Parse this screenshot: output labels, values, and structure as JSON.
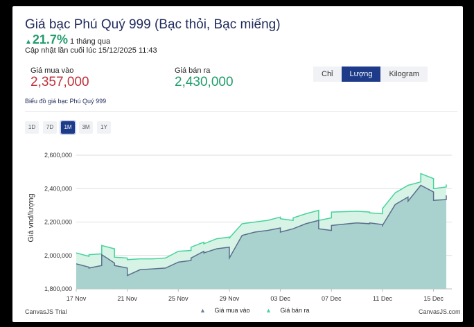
{
  "header": {
    "title": "Giá bạc Phú Quý 999 (Bạc thỏi, Bạc miếng)",
    "change_pct": "21.7%",
    "change_period": "1 tháng qua",
    "updated": "Cập nhật lần cuối lúc 15/12/2025 11:43"
  },
  "prices": {
    "buy_label": "Giá mua vào",
    "buy_value": "2,357,000",
    "sell_label": "Giá bán ra",
    "sell_value": "2,430,000"
  },
  "unit_tabs": [
    {
      "label": "Chỉ",
      "active": false
    },
    {
      "label": "Lượng",
      "active": true
    },
    {
      "label": "Kilogram",
      "active": false
    }
  ],
  "chart_caption": "Biểu đồ giá bạc Phú Quý 999",
  "range_buttons": [
    {
      "label": "1D",
      "active": false
    },
    {
      "label": "7D",
      "active": false
    },
    {
      "label": "1M",
      "active": true
    },
    {
      "label": "3M",
      "active": false
    },
    {
      "label": "1Y",
      "active": false
    }
  ],
  "footer": {
    "left": "CanvasJS Trial",
    "right": "CanvasJS.com"
  },
  "colors": {
    "buy_line": "#5b6e8c",
    "buy_fill": "#a9d2cf",
    "sell_line": "#45d39c",
    "sell_fill": "#d6f3e6"
  },
  "chart_data": {
    "type": "area",
    "ylabel": "Giá vnd/lượng",
    "ylim": [
      1800000,
      2650000
    ],
    "yticks": [
      1800000,
      2000000,
      2200000,
      2400000,
      2600000
    ],
    "ytick_labels": [
      "1,800,000",
      "2,000,000",
      "2,200,000",
      "2,400,000",
      "2,600,000"
    ],
    "xticks": [
      0,
      4,
      8,
      12,
      16,
      20,
      24,
      28
    ],
    "xtick_labels": [
      "17 Nov",
      "21 Nov",
      "25 Nov",
      "29 Nov",
      "03 Dec",
      "07 Dec",
      "11 Dec",
      "15 Dec"
    ],
    "x_range": [
      0,
      29
    ],
    "legend_position": "bottom",
    "series": [
      {
        "name": "Giá bán ra",
        "color": "#45d39c",
        "points": [
          [
            0,
            2015000
          ],
          [
            1,
            1995000
          ],
          [
            1,
            2005000
          ],
          [
            2,
            2010000
          ],
          [
            2,
            2060000
          ],
          [
            3,
            2040000
          ],
          [
            3,
            1990000
          ],
          [
            4,
            1985000
          ],
          [
            4,
            1975000
          ],
          [
            5,
            1980000
          ],
          [
            6,
            1980000
          ],
          [
            7,
            1985000
          ],
          [
            8,
            2025000
          ],
          [
            9,
            2030000
          ],
          [
            9,
            2050000
          ],
          [
            10,
            2080000
          ],
          [
            10,
            2070000
          ],
          [
            11,
            2100000
          ],
          [
            12,
            2110000
          ],
          [
            12,
            2105000
          ],
          [
            13,
            2190000
          ],
          [
            14,
            2200000
          ],
          [
            15,
            2210000
          ],
          [
            16,
            2230000
          ],
          [
            16,
            2220000
          ],
          [
            17,
            2210000
          ],
          [
            17,
            2225000
          ],
          [
            18,
            2250000
          ],
          [
            19,
            2270000
          ],
          [
            19,
            2210000
          ],
          [
            20,
            2225000
          ],
          [
            20,
            2260000
          ],
          [
            22,
            2265000
          ],
          [
            23,
            2260000
          ],
          [
            23,
            2255000
          ],
          [
            24,
            2250000
          ],
          [
            24,
            2280000
          ],
          [
            25,
            2375000
          ],
          [
            26,
            2420000
          ],
          [
            27,
            2440000
          ],
          [
            27,
            2490000
          ],
          [
            28,
            2460000
          ],
          [
            28,
            2400000
          ],
          [
            29,
            2410000
          ],
          [
            29,
            2425000
          ]
        ]
      },
      {
        "name": "Giá mua vào",
        "color": "#5b6e8c",
        "points": [
          [
            0,
            1950000
          ],
          [
            1,
            1930000
          ],
          [
            1,
            1925000
          ],
          [
            2,
            1940000
          ],
          [
            2,
            2005000
          ],
          [
            3,
            1955000
          ],
          [
            3,
            1940000
          ],
          [
            4,
            1925000
          ],
          [
            4,
            1880000
          ],
          [
            5,
            1915000
          ],
          [
            6,
            1920000
          ],
          [
            7,
            1925000
          ],
          [
            8,
            1960000
          ],
          [
            9,
            1970000
          ],
          [
            9,
            1985000
          ],
          [
            10,
            2025000
          ],
          [
            10,
            2015000
          ],
          [
            11,
            2040000
          ],
          [
            12,
            2050000
          ],
          [
            12,
            1985000
          ],
          [
            13,
            2120000
          ],
          [
            14,
            2140000
          ],
          [
            15,
            2150000
          ],
          [
            16,
            2165000
          ],
          [
            16,
            2140000
          ],
          [
            17,
            2160000
          ],
          [
            18,
            2190000
          ],
          [
            19,
            2210000
          ],
          [
            19,
            2160000
          ],
          [
            20,
            2150000
          ],
          [
            20,
            2180000
          ],
          [
            22,
            2195000
          ],
          [
            23,
            2190000
          ],
          [
            23,
            2195000
          ],
          [
            24,
            2185000
          ],
          [
            24,
            2180000
          ],
          [
            25,
            2305000
          ],
          [
            26,
            2350000
          ],
          [
            26,
            2325000
          ],
          [
            27,
            2420000
          ],
          [
            28,
            2380000
          ],
          [
            28,
            2330000
          ],
          [
            29,
            2335000
          ],
          [
            29,
            2360000
          ]
        ]
      }
    ]
  }
}
